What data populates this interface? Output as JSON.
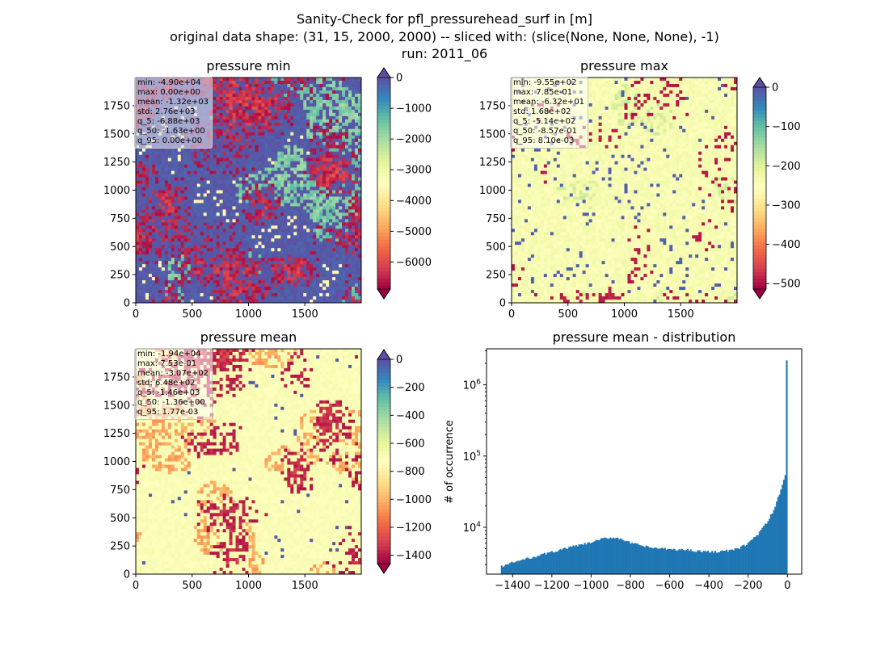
{
  "figure": {
    "title_lines": [
      "Sanity-Check for pfl_pressurehead_surf in [m]",
      "original data shape: (31, 15, 2000, 2000) -- sliced with: (slice(None, None, None), -1)",
      "run: 2011_06"
    ]
  },
  "colors": {
    "hist_bar": "#1f77b4",
    "spectral": [
      "#9e0142",
      "#d53e4f",
      "#f46d43",
      "#fdae61",
      "#fee08b",
      "#ffffbf",
      "#e6f598",
      "#abdda4",
      "#66c2a5",
      "#3288bd",
      "#5e4fa2"
    ]
  },
  "panels": [
    {
      "title": "pressure min",
      "x_ticks": [
        "0",
        "500",
        "1000",
        "1500"
      ],
      "y_ticks": [
        "0",
        "250",
        "500",
        "750",
        "1000",
        "1250",
        "1500",
        "1750"
      ],
      "stats": [
        "min: -4.90e+04",
        "max: 0.00e+00",
        "mean: -1.32e+03",
        "std: 2.76e+03",
        "q_5: -6.88e+03",
        "q_50: -1.63e+00",
        "q_95: 0.00e+00"
      ],
      "colorbar": {
        "vmin": -6880,
        "vmax": 0,
        "ticks": [
          0,
          -1000,
          -2000,
          -3000,
          -4000,
          -5000,
          -6000
        ],
        "tick_labels": [
          "0",
          "−1000",
          "−2000",
          "−3000",
          "−4000",
          "−5000",
          "−6000"
        ]
      }
    },
    {
      "title": "pressure max",
      "x_ticks": [
        "0",
        "500",
        "1000",
        "1500"
      ],
      "y_ticks": [
        "0",
        "250",
        "500",
        "750",
        "1000",
        "1250",
        "1500",
        "1750"
      ],
      "stats": [
        "min: -9.55e+02",
        "max: 7.85e-01",
        "mean: -6.32e+01",
        "std: 1.68e+02",
        "q_5: -5.14e+02",
        "q_50: -8.57e-01",
        "q_95: 8.10e-03"
      ],
      "colorbar": {
        "vmin": -514,
        "vmax": 0,
        "ticks": [
          0,
          -100,
          -200,
          -300,
          -400,
          -500
        ],
        "tick_labels": [
          "0",
          "−100",
          "−200",
          "−300",
          "−400",
          "−500"
        ]
      }
    },
    {
      "title": "pressure mean",
      "x_ticks": [
        "0",
        "500",
        "1000",
        "1500"
      ],
      "y_ticks": [
        "0",
        "250",
        "500",
        "750",
        "1000",
        "1250",
        "1500",
        "1750"
      ],
      "stats": [
        "min: -1.94e+04",
        "max: 7.53e-01",
        "mean: -3.07e+02",
        "std: 6.48e+02",
        "q_5: -1.46e+03",
        "q_50: -1.36e+00",
        "q_95: 1.77e-03"
      ],
      "colorbar": {
        "vmin": -1460,
        "vmax": 0,
        "ticks": [
          0,
          -200,
          -400,
          -600,
          -800,
          -1000,
          -1200,
          -1400
        ],
        "tick_labels": [
          "0",
          "−200",
          "−400",
          "−600",
          "−800",
          "−1000",
          "−1200",
          "−1400"
        ]
      }
    }
  ],
  "histogram_panel": {
    "title": "pressure mean - distribution",
    "ylabel": "# of occurrence",
    "x_tick_labels": [
      "−1400",
      "−1200",
      "−1000",
      "−800",
      "−600",
      "−400",
      "−200",
      "0"
    ],
    "y_tick_labels": [
      "10^4",
      "10^5",
      "10^6"
    ]
  },
  "chart_data": [
    {
      "type": "heatmap",
      "title": "pressure min",
      "xlim": [
        0,
        2000
      ],
      "ylim": [
        0,
        2000
      ],
      "x_ticks": [
        0,
        500,
        1000,
        1500
      ],
      "y_ticks": [
        0,
        250,
        500,
        750,
        1000,
        1250,
        1500,
        1750
      ],
      "colormap": "Spectral",
      "colorbar_range": [
        -6880,
        0
      ]
    },
    {
      "type": "heatmap",
      "title": "pressure max",
      "xlim": [
        0,
        2000
      ],
      "ylim": [
        0,
        2000
      ],
      "x_ticks": [
        0,
        500,
        1000,
        1500
      ],
      "y_ticks": [
        0,
        250,
        500,
        750,
        1000,
        1250,
        1500,
        1750
      ],
      "colormap": "Spectral",
      "colorbar_range": [
        -514,
        0
      ]
    },
    {
      "type": "heatmap",
      "title": "pressure mean",
      "xlim": [
        0,
        2000
      ],
      "ylim": [
        0,
        2000
      ],
      "x_ticks": [
        0,
        500,
        1000,
        1500
      ],
      "y_ticks": [
        0,
        250,
        500,
        750,
        1000,
        1250,
        1500,
        1750
      ],
      "colormap": "Spectral",
      "colorbar_range": [
        -1460,
        0
      ]
    },
    {
      "type": "bar",
      "title": "pressure mean - distribution",
      "ylabel": "# of occurrence",
      "y_scale": "log",
      "xlim": [
        -1533,
        73
      ],
      "ylim": [
        2200,
        3200000
      ],
      "x_ticks": [
        -1400,
        -1200,
        -1000,
        -800,
        -600,
        -400,
        -200,
        0
      ],
      "y_ticks": [
        10000,
        100000,
        1000000
      ],
      "bin_range": [
        -1460,
        0
      ],
      "anchors": {
        "x": [
          -1460,
          -1400,
          -1300,
          -1200,
          -1100,
          -1000,
          -950,
          -900,
          -850,
          -800,
          -700,
          -600,
          -500,
          -400,
          -300,
          -250,
          -200,
          -150,
          -100,
          -60,
          -40,
          -20,
          -10,
          -5,
          0
        ],
        "y": [
          2800,
          3200,
          3800,
          4500,
          5300,
          6100,
          6800,
          7200,
          7000,
          6000,
          5200,
          4900,
          4800,
          4500,
          4700,
          5000,
          6000,
          8000,
          12000,
          20000,
          30000,
          45000,
          55000,
          70000,
          2200000
        ]
      }
    }
  ]
}
